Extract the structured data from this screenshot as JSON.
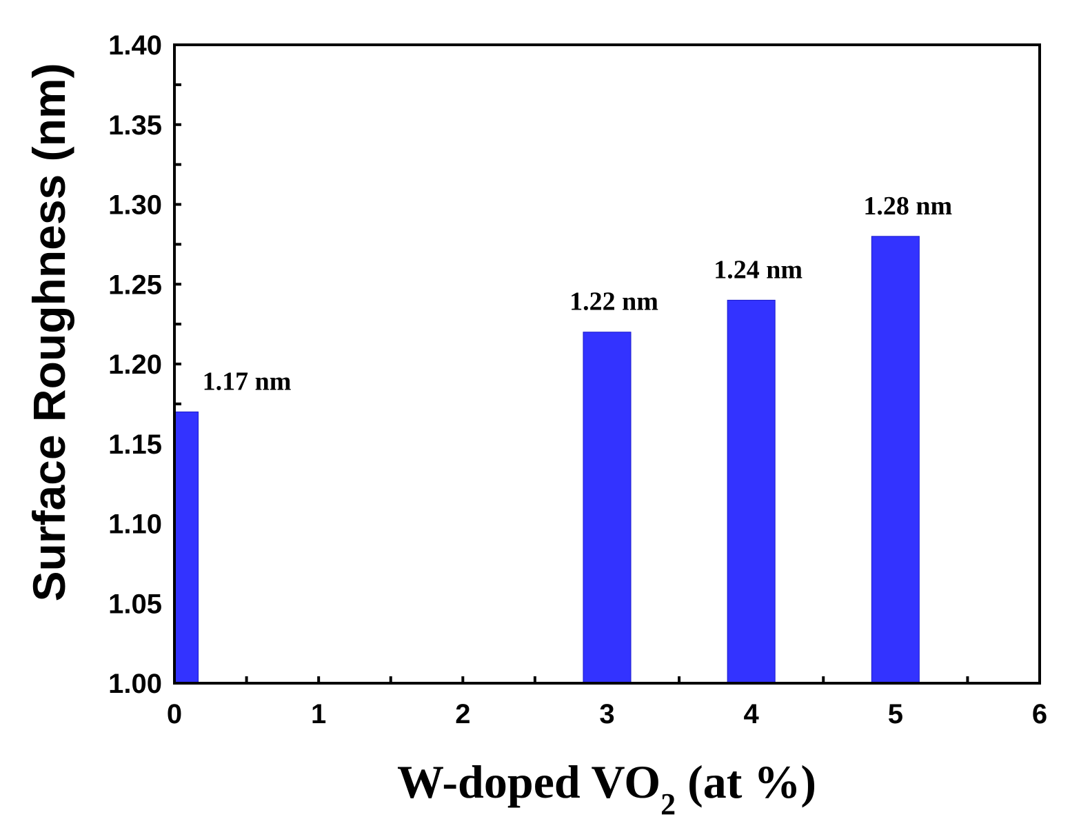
{
  "chart_data": {
    "type": "bar",
    "x": [
      0,
      3,
      4,
      5
    ],
    "values": [
      1.17,
      1.22,
      1.24,
      1.28
    ],
    "data_labels": [
      "1.17 nm",
      "1.22 nm",
      "1.24 nm",
      "1.28 nm"
    ],
    "xlabel": {
      "main": "W-doped VO",
      "subscript": "2",
      "suffix": " (at %)"
    },
    "ylabel": "Surface Roughness (nm)",
    "xlim": [
      0,
      6
    ],
    "ylim": [
      1.0,
      1.4
    ],
    "x_ticks": [
      "0",
      "1",
      "2",
      "3",
      "4",
      "5",
      "6"
    ],
    "y_ticks": [
      "1.00",
      "1.05",
      "1.10",
      "1.15",
      "1.20",
      "1.25",
      "1.30",
      "1.35",
      "1.40"
    ],
    "grid": false,
    "bar_color": "#3333ff"
  }
}
